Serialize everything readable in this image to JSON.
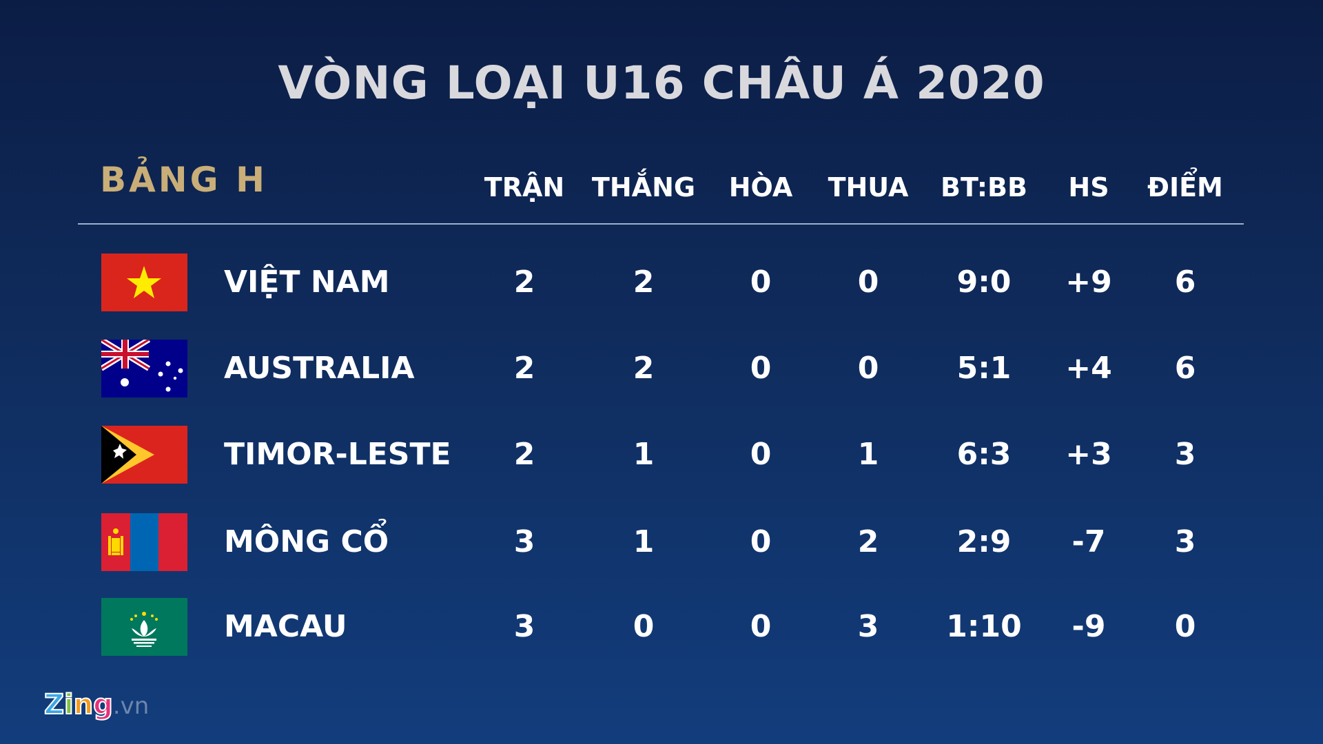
{
  "title": "VÒNG LOẠI U16 CHÂU Á 2020",
  "group": "BẢNG H",
  "headers": [
    "TRẬN",
    "THẮNG",
    "HÒA",
    "THUA",
    "BT:BB",
    "HS",
    "ĐIỂM"
  ],
  "rows": [
    {
      "team": "VIỆT NAM",
      "flag": "vietnam-flag",
      "values": [
        "2",
        "2",
        "0",
        "0",
        "9:0",
        "+9",
        "6"
      ]
    },
    {
      "team": "AUSTRALIA",
      "flag": "australia-flag",
      "values": [
        "2",
        "2",
        "0",
        "0",
        "5:1",
        "+4",
        "6"
      ]
    },
    {
      "team": "TIMOR-LESTE",
      "flag": "timor-leste-flag",
      "values": [
        "2",
        "1",
        "0",
        "1",
        "6:3",
        "+3",
        "3"
      ]
    },
    {
      "team": "MÔNG CỔ",
      "flag": "mongolia-flag",
      "values": [
        "3",
        "1",
        "0",
        "2",
        "2:9",
        "-7",
        "3"
      ]
    },
    {
      "team": "MACAU",
      "flag": "macau-flag",
      "values": [
        "3",
        "0",
        "0",
        "3",
        "1:10",
        "-9",
        "0"
      ]
    }
  ],
  "logo": {
    "brand": "Zing",
    "suffix": ".vn"
  },
  "colors": {
    "group": "#c9ae78",
    "title": "#d9d9dd"
  }
}
